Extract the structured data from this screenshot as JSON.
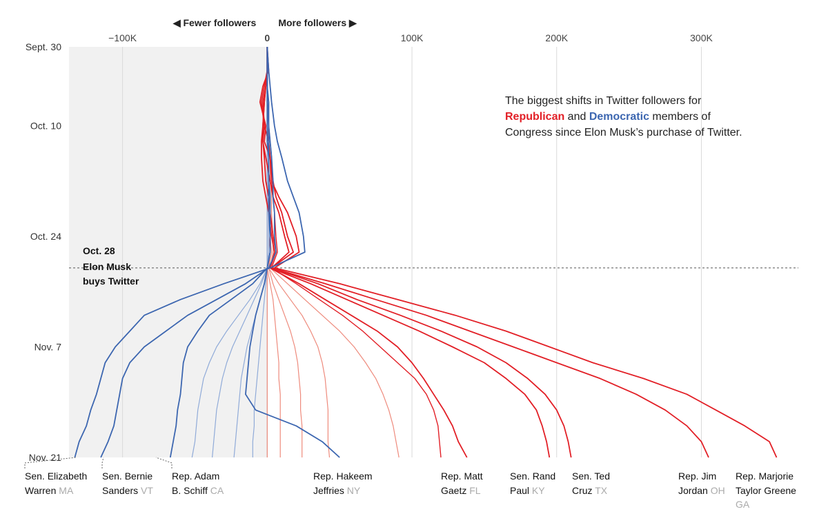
{
  "chart_data": {
    "type": "line",
    "title": "",
    "annotation": {
      "line1": "The biggest shifts in Twitter followers for",
      "rep_word": "Republican",
      "and_word": " and ",
      "dem_word": "Democratic",
      "line2_rest": " members of",
      "line3": "Congress since Elon Musk’s purchase of Twitter."
    },
    "direction_labels": {
      "left": "◀ Fewer followers",
      "right": "More followers ▶"
    },
    "x_axis": {
      "ticks": [
        -100000,
        0,
        100000,
        200000,
        300000
      ],
      "tick_labels": [
        "−100K",
        "0",
        "100K",
        "200K",
        "300K"
      ],
      "xlim": [
        -137000,
        367000
      ]
    },
    "y_axis": {
      "dates": [
        "2022-09-30",
        "2022-10-10",
        "2022-10-24",
        "2022-11-07",
        "2022-11-21"
      ],
      "date_labels": [
        "Sept. 30",
        "Oct. 10",
        "Oct. 24",
        "Nov. 7",
        "Nov. 21"
      ],
      "ylim": [
        "2022-09-30",
        "2022-11-21"
      ]
    },
    "event": {
      "date": "2022-10-28",
      "line1": "Oct. 28",
      "line2": "Elon Musk",
      "line3": "buys Twitter"
    },
    "colors": {
      "republican": "#e21f26",
      "republican_light": "#ee8a7c",
      "democratic": "#3c66b0",
      "democratic_light": "#8faad8",
      "shade": "#f1f1f1",
      "grid": "#d9d9d9"
    },
    "dates_sampled": [
      "2022-09-30",
      "2022-10-03",
      "2022-10-05",
      "2022-10-07",
      "2022-10-10",
      "2022-10-12",
      "2022-10-14",
      "2022-10-17",
      "2022-10-19",
      "2022-10-21",
      "2022-10-24",
      "2022-10-26",
      "2022-10-28",
      "2022-10-30",
      "2022-11-01",
      "2022-11-03",
      "2022-11-05",
      "2022-11-07",
      "2022-11-09",
      "2022-11-11",
      "2022-11-13",
      "2022-11-15",
      "2022-11-17",
      "2022-11-19",
      "2022-11-21"
    ],
    "series": [
      {
        "party": "R",
        "emphasis": "strong",
        "values": [
          0,
          1000,
          -3000,
          -5000,
          -1000,
          -2000,
          2000,
          3000,
          8000,
          14000,
          20000,
          22000,
          5000,
          50000,
          90000,
          130000,
          165000,
          195000,
          225000,
          260000,
          290000,
          310000,
          330000,
          347000,
          352000
        ]
      },
      {
        "party": "R",
        "emphasis": "strong",
        "values": [
          0,
          0,
          -2000,
          -4000,
          -2000,
          1000,
          2000,
          4000,
          6000,
          10000,
          14000,
          18000,
          3000,
          40000,
          75000,
          110000,
          140000,
          170000,
          200000,
          230000,
          255000,
          275000,
          290000,
          300000,
          305000
        ]
      },
      {
        "party": "R",
        "emphasis": "strong",
        "values": [
          0,
          0,
          -1000,
          -3000,
          -2000,
          -3000,
          -1000,
          2000,
          4000,
          8000,
          12000,
          15000,
          3000,
          35000,
          62000,
          92000,
          120000,
          145000,
          165000,
          180000,
          192000,
          200000,
          205000,
          208000,
          210000
        ]
      },
      {
        "party": "R",
        "emphasis": "strong",
        "values": [
          0,
          0,
          -1000,
          -2000,
          -3000,
          -4000,
          -4000,
          -3000,
          -1000,
          1000,
          3000,
          5000,
          2000,
          30000,
          55000,
          80000,
          105000,
          128000,
          150000,
          165000,
          178000,
          186000,
          190000,
          193000,
          195000
        ]
      },
      {
        "party": "R",
        "emphasis": "strong",
        "values": [
          0,
          0,
          -1000,
          -2000,
          -3000,
          -3000,
          -2000,
          -1000,
          1000,
          2000,
          4000,
          6000,
          2000,
          22000,
          40000,
          58000,
          76000,
          90000,
          100000,
          108000,
          115000,
          122000,
          128000,
          132000,
          138000
        ]
      },
      {
        "party": "R",
        "emphasis": "medium",
        "values": [
          0,
          0,
          0,
          1000,
          1000,
          2000,
          3000,
          3000,
          4000,
          5000,
          6000,
          7000,
          3000,
          20000,
          36000,
          52000,
          66000,
          78000,
          90000,
          102000,
          110000,
          115000,
          118000,
          119000,
          120000
        ]
      },
      {
        "party": "R",
        "emphasis": "light",
        "values": [
          0,
          0,
          0,
          0,
          1000,
          1000,
          2000,
          2000,
          3000,
          3000,
          4000,
          4000,
          2000,
          14000,
          26000,
          38000,
          50000,
          60000,
          68000,
          75000,
          80000,
          84000,
          87000,
          89000,
          91000
        ]
      },
      {
        "party": "R",
        "emphasis": "light",
        "values": [
          0,
          0,
          0,
          0,
          0,
          1000,
          1000,
          1000,
          2000,
          2000,
          2000,
          3000,
          1000,
          8000,
          16000,
          24000,
          30000,
          35000,
          38000,
          40000,
          41000,
          42000,
          42000,
          42000,
          43000
        ]
      },
      {
        "party": "R",
        "emphasis": "light",
        "values": [
          0,
          0,
          0,
          0,
          0,
          0,
          1000,
          1000,
          1000,
          1000,
          1000,
          2000,
          1000,
          4000,
          8000,
          12000,
          16000,
          19000,
          21000,
          22000,
          23000,
          23000,
          24000,
          24000,
          24000
        ]
      },
      {
        "party": "R",
        "emphasis": "light",
        "values": [
          0,
          0,
          0,
          0,
          0,
          0,
          0,
          0,
          0,
          1000,
          1000,
          1000,
          0,
          2000,
          4000,
          5000,
          6000,
          7000,
          8000,
          8000,
          9000,
          9000,
          9000,
          9000,
          9000
        ]
      },
      {
        "party": "R",
        "emphasis": "light",
        "values": [
          0,
          0,
          0,
          0,
          0,
          0,
          0,
          0,
          0,
          0,
          0,
          0,
          0,
          0,
          0,
          0,
          0,
          0,
          0,
          0,
          0,
          0,
          0,
          0,
          0
        ]
      },
      {
        "party": "D",
        "emphasis": "strong",
        "values": [
          0,
          1000,
          2000,
          3000,
          5000,
          7000,
          10000,
          14000,
          18000,
          22000,
          25000,
          26000,
          2000,
          -30000,
          -60000,
          -85000,
          -95000,
          -105000,
          -112000,
          -115000,
          -118000,
          -122000,
          -125000,
          -130000,
          -133000
        ]
      },
      {
        "party": "D",
        "emphasis": "strong",
        "values": [
          0,
          0,
          0,
          1000,
          1000,
          2000,
          3000,
          4000,
          4000,
          5000,
          5000,
          6000,
          1000,
          -15000,
          -35000,
          -55000,
          -70000,
          -85000,
          -95000,
          -100000,
          -102000,
          -104000,
          -106000,
          -110000,
          -115000
        ]
      },
      {
        "party": "D",
        "emphasis": "strong",
        "values": [
          0,
          0,
          0,
          0,
          0,
          0,
          1000,
          1000,
          1000,
          1000,
          2000,
          2000,
          0,
          -10000,
          -25000,
          -40000,
          -48000,
          -55000,
          -58000,
          -59000,
          -60000,
          -62000,
          -63000,
          -65000,
          -67000
        ]
      },
      {
        "party": "D",
        "emphasis": "strong",
        "values": [
          0,
          0,
          0,
          0,
          1000,
          1000,
          1000,
          1000,
          2000,
          2000,
          2000,
          2000,
          0,
          -2000,
          -5000,
          -8000,
          -10000,
          -12000,
          -13000,
          -14000,
          -15000,
          -8000,
          20000,
          38000,
          50000
        ]
      },
      {
        "party": "D",
        "emphasis": "light",
        "values": [
          0,
          0,
          0,
          0,
          0,
          0,
          0,
          1000,
          1000,
          1000,
          1000,
          1000,
          0,
          -5000,
          -12000,
          -20000,
          -28000,
          -35000,
          -40000,
          -44000,
          -46000,
          -48000,
          -49000,
          -50000,
          -52000
        ]
      },
      {
        "party": "D",
        "emphasis": "light",
        "values": [
          0,
          0,
          0,
          0,
          0,
          0,
          0,
          0,
          0,
          1000,
          1000,
          1000,
          0,
          -4000,
          -9000,
          -14000,
          -19000,
          -24000,
          -28000,
          -31000,
          -33000,
          -35000,
          -36000,
          -37000,
          -38000
        ]
      },
      {
        "party": "D",
        "emphasis": "light",
        "values": [
          0,
          0,
          0,
          0,
          0,
          0,
          0,
          0,
          0,
          0,
          0,
          0,
          0,
          -2000,
          -5000,
          -8000,
          -11000,
          -14000,
          -16000,
          -18000,
          -19000,
          -20000,
          -21000,
          -22000,
          -23000
        ]
      },
      {
        "party": "D",
        "emphasis": "light",
        "values": [
          0,
          0,
          0,
          0,
          0,
          0,
          0,
          0,
          0,
          0,
          0,
          0,
          0,
          -1000,
          -2000,
          -3000,
          -4000,
          -5000,
          -6000,
          -7000,
          -8000,
          -9000,
          -9000,
          -10000,
          -10000
        ]
      }
    ],
    "member_labels": [
      {
        "name1": "Sen. Elizabeth",
        "name2": "Warren",
        "state": "MA"
      },
      {
        "name1": "Sen. Bernie",
        "name2": "Sanders",
        "state": "VT"
      },
      {
        "name1": "Rep. Adam",
        "name2": "B. Schiff",
        "state": "CA"
      },
      {
        "name1": "Rep. Hakeem",
        "name2": "Jeffries",
        "state": "NY"
      },
      {
        "name1": "Rep. Matt",
        "name2": "Gaetz",
        "state": "FL"
      },
      {
        "name1": "Sen. Rand",
        "name2": "Paul",
        "state": "KY"
      },
      {
        "name1": "Sen. Ted",
        "name2": "Cruz",
        "state": "TX"
      },
      {
        "name1": "Rep. Jim",
        "name2": "Jordan",
        "state": "OH"
      },
      {
        "name1": "Rep. Marjorie",
        "name2": "Taylor Greene",
        "state": "GA"
      }
    ]
  }
}
